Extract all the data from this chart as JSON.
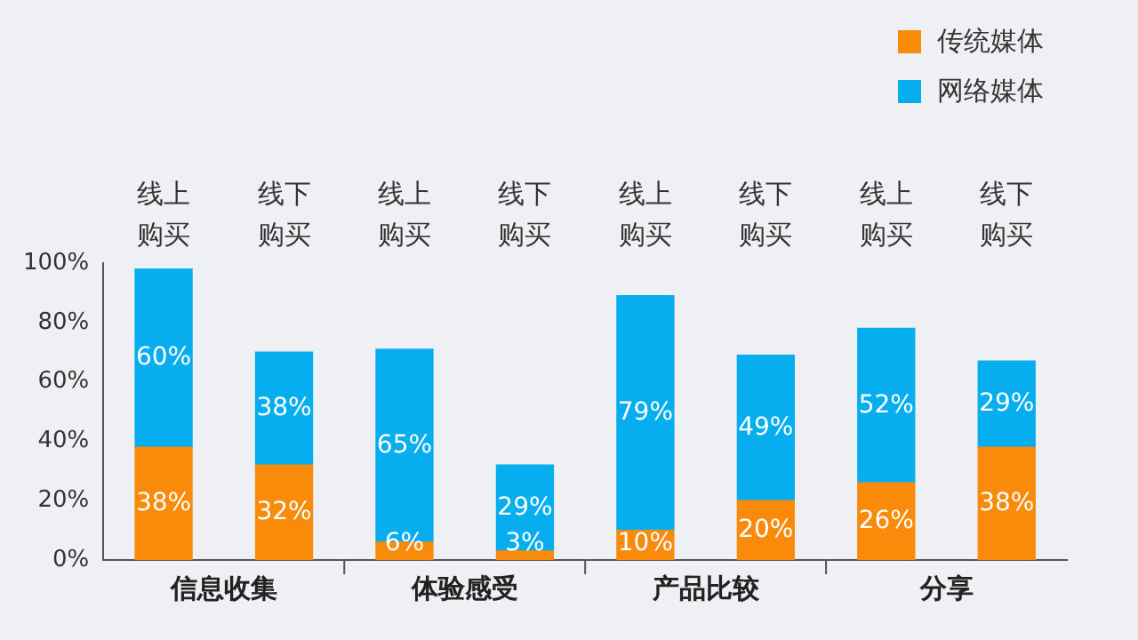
{
  "chart_data": {
    "type": "bar",
    "stacked": true,
    "categories": [
      "线上购买",
      "线下购买",
      "线上购买",
      "线下购买",
      "线上购买",
      "线下购买",
      "线上购买",
      "线下购买"
    ],
    "series": [
      {
        "name": "传统媒体",
        "color": "#fa8a0a",
        "values": [
          38,
          32,
          6,
          3,
          10,
          20,
          26,
          38
        ],
        "value_labels": [
          "38%",
          "32%",
          "6%",
          "3%",
          "10%",
          "20%",
          "26%",
          "38%"
        ]
      },
      {
        "name": "网络媒体",
        "color": "#06aef0",
        "values": [
          60,
          38,
          65,
          29,
          79,
          49,
          52,
          29
        ],
        "value_labels": [
          "60%",
          "38%",
          "65%",
          "29%",
          "79%",
          "49%",
          "52%",
          "29%"
        ]
      }
    ],
    "annotations": [
      "信息收集",
      "体验感受",
      "产品比较",
      "分享"
    ],
    "ylim": [
      0,
      100
    ],
    "yticks": [
      {
        "value": 0,
        "label": "0%"
      },
      {
        "value": 20,
        "label": "20%"
      },
      {
        "value": 40,
        "label": "40%"
      },
      {
        "value": 60,
        "label": "60%"
      },
      {
        "value": 80,
        "label": "80%"
      },
      {
        "value": 100,
        "label": "100%"
      }
    ],
    "grid": false,
    "legend": "top right"
  }
}
